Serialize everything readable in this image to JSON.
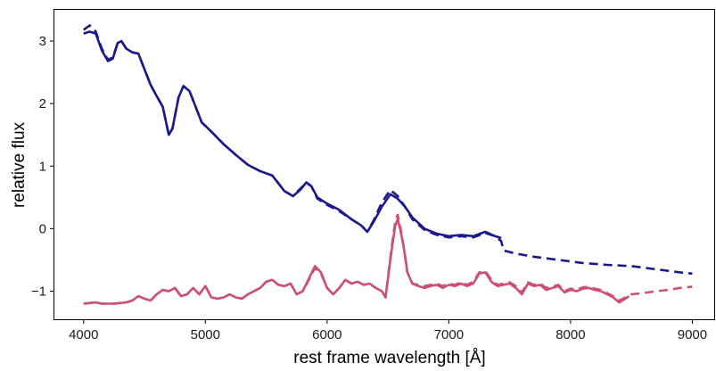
{
  "chart_data": {
    "type": "line",
    "title": "",
    "xlabel": "rest frame wavelength [Å]",
    "ylabel": "relative flux",
    "xlim": [
      3760,
      9180
    ],
    "ylim": [
      -1.45,
      3.5
    ],
    "xticks": [
      {
        "value": 4000,
        "label": "4000"
      },
      {
        "value": 5000,
        "label": "5000"
      },
      {
        "value": 6000,
        "label": "6000"
      },
      {
        "value": 7000,
        "label": "7000"
      },
      {
        "value": 8000,
        "label": "8000"
      },
      {
        "value": 9000,
        "label": "9000"
      }
    ],
    "yticks": [
      {
        "value": 3,
        "label": "3"
      },
      {
        "value": 2,
        "label": "2"
      },
      {
        "value": 1,
        "label": "1"
      },
      {
        "value": 0,
        "label": "0"
      },
      {
        "value": -1,
        "label": "−1"
      }
    ],
    "grid": false,
    "legend": "none",
    "series": [
      {
        "color": "#1a1a8c",
        "style": "solid",
        "points": [
          [
            4000,
            3.12
          ],
          [
            4050,
            3.15
          ],
          [
            4100,
            3.12
          ],
          [
            4150,
            2.85
          ],
          [
            4200,
            2.68
          ],
          [
            4240,
            2.72
          ],
          [
            4280,
            2.97
          ],
          [
            4310,
            3.0
          ],
          [
            4350,
            2.88
          ],
          [
            4400,
            2.82
          ],
          [
            4450,
            2.8
          ],
          [
            4500,
            2.55
          ],
          [
            4550,
            2.3
          ],
          [
            4600,
            2.12
          ],
          [
            4650,
            1.95
          ],
          [
            4700,
            1.5
          ],
          [
            4730,
            1.6
          ],
          [
            4780,
            2.1
          ],
          [
            4820,
            2.28
          ],
          [
            4870,
            2.2
          ],
          [
            4920,
            1.95
          ],
          [
            4970,
            1.7
          ],
          [
            5050,
            1.55
          ],
          [
            5150,
            1.35
          ],
          [
            5250,
            1.18
          ],
          [
            5350,
            1.02
          ],
          [
            5450,
            0.92
          ],
          [
            5550,
            0.85
          ],
          [
            5650,
            0.6
          ],
          [
            5720,
            0.52
          ],
          [
            5780,
            0.62
          ],
          [
            5830,
            0.74
          ],
          [
            5870,
            0.68
          ],
          [
            5920,
            0.5
          ],
          [
            6000,
            0.4
          ],
          [
            6100,
            0.3
          ],
          [
            6200,
            0.15
          ],
          [
            6280,
            0.05
          ],
          [
            6330,
            -0.05
          ],
          [
            6380,
            0.1
          ],
          [
            6450,
            0.35
          ],
          [
            6520,
            0.55
          ],
          [
            6580,
            0.48
          ],
          [
            6640,
            0.35
          ],
          [
            6700,
            0.18
          ],
          [
            6800,
            0.0
          ],
          [
            6900,
            -0.08
          ],
          [
            7000,
            -0.12
          ],
          [
            7100,
            -0.1
          ],
          [
            7200,
            -0.12
          ],
          [
            7300,
            -0.05
          ],
          [
            7380,
            -0.12
          ],
          [
            7430,
            -0.15
          ]
        ]
      },
      {
        "color": "#1a1a8c",
        "style": "dashed",
        "points": [
          [
            4000,
            3.18
          ],
          [
            4050,
            3.25
          ],
          [
            4100,
            3.15
          ],
          [
            4150,
            2.88
          ],
          [
            4200,
            2.7
          ],
          [
            4240,
            2.74
          ],
          [
            4280,
            2.97
          ],
          [
            4310,
            3.0
          ],
          [
            4350,
            2.88
          ],
          [
            4400,
            2.82
          ],
          [
            4450,
            2.8
          ],
          [
            4500,
            2.55
          ],
          [
            4550,
            2.3
          ],
          [
            4600,
            2.12
          ],
          [
            4650,
            1.95
          ],
          [
            4700,
            1.5
          ],
          [
            4730,
            1.6
          ],
          [
            4780,
            2.1
          ],
          [
            4820,
            2.28
          ],
          [
            4870,
            2.2
          ],
          [
            4920,
            1.95
          ],
          [
            4970,
            1.7
          ],
          [
            5050,
            1.55
          ],
          [
            5150,
            1.35
          ],
          [
            5250,
            1.18
          ],
          [
            5350,
            1.02
          ],
          [
            5450,
            0.92
          ],
          [
            5550,
            0.85
          ],
          [
            5650,
            0.6
          ],
          [
            5720,
            0.52
          ],
          [
            5780,
            0.64
          ],
          [
            5830,
            0.73
          ],
          [
            5870,
            0.68
          ],
          [
            5920,
            0.48
          ],
          [
            6000,
            0.38
          ],
          [
            6100,
            0.28
          ],
          [
            6200,
            0.15
          ],
          [
            6280,
            0.05
          ],
          [
            6330,
            -0.05
          ],
          [
            6380,
            0.12
          ],
          [
            6450,
            0.42
          ],
          [
            6520,
            0.62
          ],
          [
            6580,
            0.52
          ],
          [
            6640,
            0.35
          ],
          [
            6700,
            0.15
          ],
          [
            6800,
            -0.02
          ],
          [
            6900,
            -0.1
          ],
          [
            7000,
            -0.14
          ],
          [
            7100,
            -0.12
          ],
          [
            7200,
            -0.14
          ],
          [
            7300,
            -0.07
          ],
          [
            7380,
            -0.12
          ],
          [
            7430,
            -0.2
          ],
          [
            7450,
            -0.35
          ],
          [
            7550,
            -0.4
          ],
          [
            7700,
            -0.45
          ],
          [
            7900,
            -0.5
          ],
          [
            8100,
            -0.55
          ],
          [
            8300,
            -0.58
          ],
          [
            8500,
            -0.6
          ],
          [
            8700,
            -0.65
          ],
          [
            8900,
            -0.7
          ],
          [
            9000,
            -0.72
          ]
        ]
      },
      {
        "color": "#cc4f7a",
        "style": "solid",
        "points": [
          [
            4000,
            -1.2
          ],
          [
            4100,
            -1.18
          ],
          [
            4150,
            -1.2
          ],
          [
            4250,
            -1.2
          ],
          [
            4350,
            -1.18
          ],
          [
            4400,
            -1.15
          ],
          [
            4450,
            -1.08
          ],
          [
            4500,
            -1.12
          ],
          [
            4550,
            -1.15
          ],
          [
            4600,
            -1.05
          ],
          [
            4650,
            -0.98
          ],
          [
            4700,
            -1.0
          ],
          [
            4750,
            -0.95
          ],
          [
            4800,
            -1.08
          ],
          [
            4850,
            -1.05
          ],
          [
            4900,
            -0.95
          ],
          [
            4950,
            -1.05
          ],
          [
            5000,
            -0.92
          ],
          [
            5050,
            -1.1
          ],
          [
            5100,
            -1.12
          ],
          [
            5150,
            -1.1
          ],
          [
            5200,
            -1.05
          ],
          [
            5250,
            -1.1
          ],
          [
            5300,
            -1.12
          ],
          [
            5350,
            -1.05
          ],
          [
            5400,
            -1.0
          ],
          [
            5450,
            -0.95
          ],
          [
            5500,
            -0.85
          ],
          [
            5550,
            -0.82
          ],
          [
            5600,
            -0.9
          ],
          [
            5650,
            -0.92
          ],
          [
            5700,
            -0.88
          ],
          [
            5750,
            -1.05
          ],
          [
            5800,
            -1.0
          ],
          [
            5850,
            -0.8
          ],
          [
            5900,
            -0.6
          ],
          [
            5950,
            -0.7
          ],
          [
            6000,
            -0.95
          ],
          [
            6050,
            -1.05
          ],
          [
            6100,
            -0.95
          ],
          [
            6150,
            -0.82
          ],
          [
            6200,
            -0.88
          ],
          [
            6250,
            -0.85
          ],
          [
            6300,
            -0.9
          ],
          [
            6350,
            -0.88
          ],
          [
            6400,
            -0.95
          ],
          [
            6450,
            -1.0
          ],
          [
            6480,
            -1.1
          ],
          [
            6500,
            -0.8
          ],
          [
            6530,
            -0.35
          ],
          [
            6560,
            0.05
          ],
          [
            6580,
            0.15
          ],
          [
            6600,
            0.0
          ],
          [
            6630,
            -0.3
          ],
          [
            6660,
            -0.7
          ],
          [
            6700,
            -0.88
          ],
          [
            6750,
            -0.92
          ],
          [
            6800,
            -0.95
          ],
          [
            6850,
            -0.92
          ],
          [
            6900,
            -0.9
          ],
          [
            6950,
            -0.95
          ],
          [
            7000,
            -0.9
          ],
          [
            7050,
            -0.92
          ],
          [
            7100,
            -0.88
          ],
          [
            7150,
            -0.92
          ],
          [
            7200,
            -0.88
          ],
          [
            7250,
            -0.72
          ],
          [
            7300,
            -0.7
          ],
          [
            7350,
            -0.85
          ],
          [
            7400,
            -0.92
          ],
          [
            7450,
            -0.9
          ],
          [
            7500,
            -0.88
          ],
          [
            7550,
            -0.95
          ],
          [
            7600,
            -1.05
          ],
          [
            7650,
            -0.88
          ],
          [
            7700,
            -0.92
          ],
          [
            7750,
            -0.9
          ],
          [
            7800,
            -0.98
          ],
          [
            7850,
            -0.95
          ],
          [
            7900,
            -0.92
          ],
          [
            7950,
            -1.02
          ],
          [
            8000,
            -0.98
          ],
          [
            8050,
            -1.0
          ],
          [
            8100,
            -0.96
          ],
          [
            8150,
            -0.95
          ],
          [
            8200,
            -0.98
          ],
          [
            8250,
            -1.0
          ],
          [
            8300,
            -1.05
          ],
          [
            8350,
            -1.1
          ],
          [
            8400,
            -1.18
          ],
          [
            8450,
            -1.12
          ],
          [
            8480,
            -1.08
          ]
        ]
      },
      {
        "color": "#cc4f7a",
        "style": "dashed",
        "points": [
          [
            4000,
            -1.2
          ],
          [
            4100,
            -1.18
          ],
          [
            4150,
            -1.2
          ],
          [
            4250,
            -1.2
          ],
          [
            4350,
            -1.18
          ],
          [
            4400,
            -1.15
          ],
          [
            4450,
            -1.08
          ],
          [
            4500,
            -1.12
          ],
          [
            4550,
            -1.15
          ],
          [
            4600,
            -1.05
          ],
          [
            4650,
            -0.98
          ],
          [
            4700,
            -1.0
          ],
          [
            4750,
            -0.95
          ],
          [
            4800,
            -1.08
          ],
          [
            4850,
            -1.05
          ],
          [
            4900,
            -0.95
          ],
          [
            4950,
            -1.05
          ],
          [
            5000,
            -0.92
          ],
          [
            5050,
            -1.1
          ],
          [
            5100,
            -1.12
          ],
          [
            5150,
            -1.1
          ],
          [
            5200,
            -1.05
          ],
          [
            5250,
            -1.1
          ],
          [
            5300,
            -1.12
          ],
          [
            5350,
            -1.05
          ],
          [
            5400,
            -1.0
          ],
          [
            5450,
            -0.95
          ],
          [
            5500,
            -0.85
          ],
          [
            5550,
            -0.82
          ],
          [
            5600,
            -0.9
          ],
          [
            5650,
            -0.92
          ],
          [
            5700,
            -0.88
          ],
          [
            5750,
            -1.05
          ],
          [
            5800,
            -1.0
          ],
          [
            5850,
            -0.82
          ],
          [
            5900,
            -0.63
          ],
          [
            5950,
            -0.72
          ],
          [
            6000,
            -0.95
          ],
          [
            6050,
            -1.05
          ],
          [
            6100,
            -0.95
          ],
          [
            6150,
            -0.82
          ],
          [
            6200,
            -0.88
          ],
          [
            6250,
            -0.85
          ],
          [
            6300,
            -0.9
          ],
          [
            6350,
            -0.88
          ],
          [
            6400,
            -0.95
          ],
          [
            6450,
            -1.0
          ],
          [
            6480,
            -1.1
          ],
          [
            6500,
            -0.78
          ],
          [
            6530,
            -0.3
          ],
          [
            6560,
            0.12
          ],
          [
            6580,
            0.22
          ],
          [
            6600,
            0.05
          ],
          [
            6630,
            -0.3
          ],
          [
            6660,
            -0.7
          ],
          [
            6700,
            -0.88
          ],
          [
            6750,
            -0.9
          ],
          [
            6800,
            -0.92
          ],
          [
            6850,
            -0.9
          ],
          [
            6900,
            -0.88
          ],
          [
            6950,
            -0.92
          ],
          [
            7000,
            -0.88
          ],
          [
            7050,
            -0.9
          ],
          [
            7100,
            -0.86
          ],
          [
            7150,
            -0.9
          ],
          [
            7200,
            -0.85
          ],
          [
            7250,
            -0.7
          ],
          [
            7300,
            -0.68
          ],
          [
            7350,
            -0.82
          ],
          [
            7400,
            -0.9
          ],
          [
            7450,
            -0.88
          ],
          [
            7500,
            -0.86
          ],
          [
            7550,
            -0.92
          ],
          [
            7600,
            -1.02
          ],
          [
            7650,
            -0.86
          ],
          [
            7700,
            -0.9
          ],
          [
            7750,
            -0.88
          ],
          [
            7800,
            -0.95
          ],
          [
            7850,
            -0.93
          ],
          [
            7900,
            -0.9
          ],
          [
            7950,
            -1.0
          ],
          [
            8000,
            -0.96
          ],
          [
            8050,
            -0.98
          ],
          [
            8100,
            -0.94
          ],
          [
            8150,
            -0.93
          ],
          [
            8200,
            -0.96
          ],
          [
            8250,
            -0.98
          ],
          [
            8300,
            -1.03
          ],
          [
            8350,
            -1.08
          ],
          [
            8400,
            -1.15
          ],
          [
            8450,
            -1.1
          ],
          [
            8500,
            -1.05
          ],
          [
            8600,
            -1.03
          ],
          [
            8700,
            -1.0
          ],
          [
            8800,
            -0.98
          ],
          [
            8900,
            -0.95
          ],
          [
            9000,
            -0.93
          ]
        ]
      }
    ]
  }
}
